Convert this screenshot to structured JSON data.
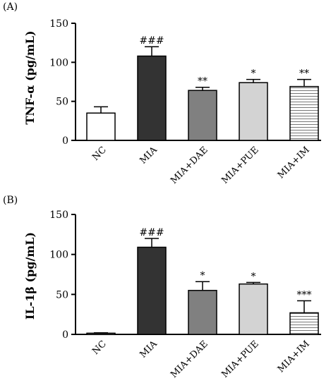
{
  "chart_data": [
    {
      "type": "bar",
      "title": "(A)",
      "ylabel": "TNF-α (pg/mL)",
      "ylim": [
        0,
        150
      ],
      "yticks": [
        0,
        50,
        100,
        150
      ],
      "categories": [
        "NC",
        "MIA",
        "MIA+DAE",
        "MIA+PUE",
        "MIA+IM"
      ],
      "values": [
        35,
        108,
        64,
        74,
        69
      ],
      "errors": [
        8,
        12,
        4,
        4,
        9
      ],
      "annotations": [
        "",
        "###",
        "**",
        "*",
        "**"
      ],
      "colors": [
        "#ffffff",
        "#333333",
        "#808080",
        "#d3d3d3",
        "stripes"
      ]
    },
    {
      "type": "bar",
      "title": "(B)",
      "ylabel": "IL-1β (pg/mL)",
      "ylim": [
        0,
        150
      ],
      "yticks": [
        0,
        50,
        100,
        150
      ],
      "categories": [
        "NC",
        "MIA",
        "MIA+DAE",
        "MIA+PUE",
        "MIA+IM"
      ],
      "values": [
        1.5,
        109,
        55,
        63,
        27
      ],
      "errors": [
        0.5,
        11,
        11,
        2,
        15
      ],
      "annotations": [
        "",
        "###",
        "*",
        "*",
        "***"
      ],
      "colors": [
        "#ffffff",
        "#333333",
        "#808080",
        "#d3d3d3",
        "stripes"
      ]
    }
  ]
}
